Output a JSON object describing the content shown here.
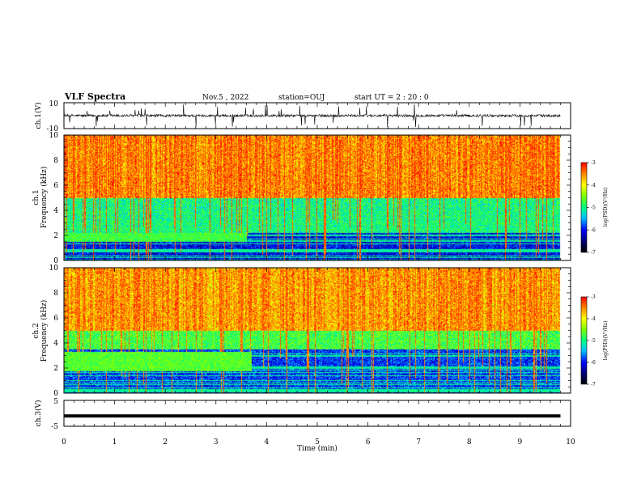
{
  "header": {
    "title": "VLF Spectra",
    "date": "Nov.5 , 2022",
    "station": "station=OUJ",
    "start": "start UT = 2 : 20 : 0"
  },
  "colors": {
    "colormap": [
      "#00007a",
      "#0000ff",
      "#00bfff",
      "#00ff7f",
      "#7fff00",
      "#ffff00",
      "#ff8000",
      "#ff0000",
      "#ffffff"
    ]
  },
  "chart_data": [
    {
      "type": "line",
      "panel": "ch1-waveform",
      "ylabel": "ch.1(V)",
      "ylim": [
        -10,
        10
      ],
      "y_ticks": [
        "10",
        "-10"
      ],
      "xlim": [
        0,
        10
      ],
      "series": [
        {
          "baseline": 0,
          "noise_amplitude": 2,
          "spike_amplitude": 9
        }
      ]
    },
    {
      "type": "heatmap",
      "panel": "ch1-spectrogram",
      "ylabel_top": "ch.1",
      "ylabel": "Frequency (kHz)",
      "xlim": [
        0,
        9.8
      ],
      "ylim": [
        0,
        10
      ],
      "y_ticks": [
        "0",
        "2",
        "4",
        "6",
        "8",
        "10"
      ],
      "colorbar": {
        "label": "log(PSD)(V²/Hz)",
        "range": [
          -7,
          -3
        ],
        "ticks": [
          "-3",
          "-4",
          "-5",
          "-6",
          "-7"
        ]
      },
      "bands": [
        {
          "freq_khz": [
            5,
            10
          ],
          "level": -3.6,
          "description_values": "broadband high PSD"
        },
        {
          "freq_khz": [
            2.2,
            5
          ],
          "level": -5.3
        },
        {
          "freq_khz": [
            0,
            2.2
          ],
          "level": -6.5
        }
      ],
      "features": [
        {
          "t_min": [
            0,
            3.6
          ],
          "freq_khz": [
            1.5,
            2.2
          ],
          "level": -5.0
        }
      ]
    },
    {
      "type": "heatmap",
      "panel": "ch2-spectrogram",
      "ylabel_top": "ch.2",
      "ylabel": "Frequency (kHz)",
      "xlim": [
        0,
        9.8
      ],
      "ylim": [
        0,
        10
      ],
      "y_ticks": [
        "0",
        "2",
        "4",
        "6",
        "8",
        "10"
      ],
      "colorbar": {
        "label": "log(PSD)(V²/Hz)",
        "range": [
          -7,
          -3
        ],
        "ticks": [
          "-3",
          "-4",
          "-5",
          "-6",
          "-7"
        ]
      },
      "bands": [
        {
          "freq_khz": [
            5,
            10
          ],
          "level": -3.7
        },
        {
          "freq_khz": [
            3.5,
            5
          ],
          "level": -5.0
        },
        {
          "freq_khz": [
            0,
            3.5
          ],
          "level": -6.3
        }
      ],
      "features": [
        {
          "t_min": [
            0,
            3.7
          ],
          "freq_khz": [
            1.8,
            3.3
          ],
          "level": -4.9
        }
      ]
    },
    {
      "type": "line",
      "panel": "ch3-waveform",
      "ylabel": "ch.3(V)",
      "ylim": [
        -5,
        5
      ],
      "y_ticks": [
        "5",
        "-5"
      ],
      "xlim": [
        0,
        10
      ],
      "series": [
        {
          "constant": -1
        }
      ]
    }
  ],
  "x_axis": {
    "label": "Time (min)",
    "ticks": [
      "0",
      "1",
      "2",
      "3",
      "4",
      "5",
      "6",
      "7",
      "8",
      "9",
      "10"
    ]
  }
}
